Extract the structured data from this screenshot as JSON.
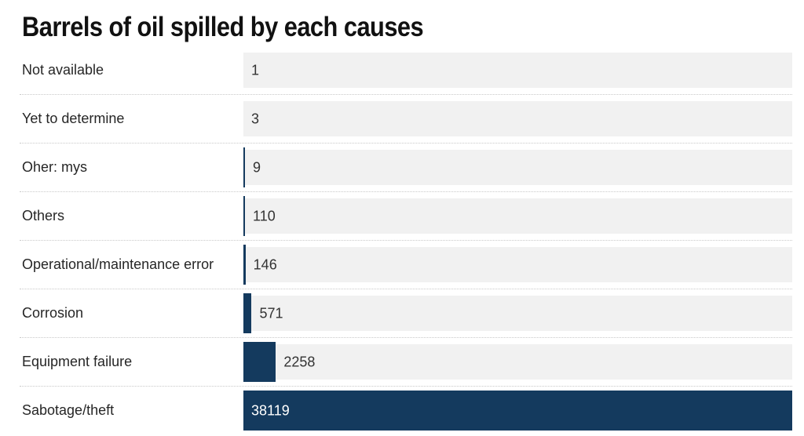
{
  "title": "Barrels of oil spilled by each causes",
  "chart_data": {
    "type": "bar",
    "orientation": "horizontal",
    "title": "Barrels of oil spilled by each causes",
    "categories": [
      "Not available",
      "Yet to determine",
      "Oher: mys",
      "Others",
      "Operational/maintenance error",
      "Corrosion",
      "Equipment failure",
      "Sabotage/theft"
    ],
    "values": [
      1,
      3,
      9,
      110,
      146,
      571,
      2258,
      38119
    ],
    "value_labels": [
      "1",
      "3",
      "9",
      "110",
      "146",
      "571",
      "2258",
      "38119"
    ],
    "xlim": [
      0,
      38119
    ],
    "grid": false,
    "legend": false,
    "xlabel": "",
    "ylabel": "",
    "bar_color": "#143a5e",
    "track_color": "#f1f1f1",
    "separator_color": "#c9c9c9",
    "label_color": "#262626",
    "value_color": "#333333",
    "value_inside_color": "#ffffff",
    "value_inside_category": "Sabotage/theft"
  }
}
